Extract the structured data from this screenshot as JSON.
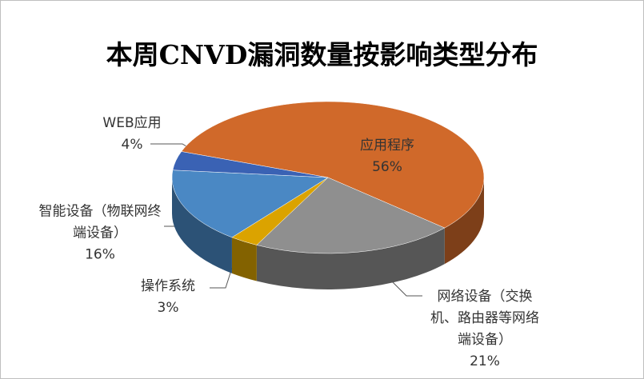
{
  "chart_data": {
    "type": "pie",
    "title": "本周CNVD漏洞数量按影响类型分布",
    "categories": [
      "应用程序",
      "网络设备（交换机、路由器等网络端设备）",
      "操作系统",
      "智能设备（物联网终端设备）",
      "WEB应用"
    ],
    "values": [
      56,
      21,
      3,
      16,
      4
    ],
    "value_labels": [
      "56%",
      "21%",
      "3%",
      "16%",
      "4%"
    ],
    "colors": [
      "#d0692a",
      "#8f8f8f",
      "#dba300",
      "#4a88c4",
      "#3a62b4"
    ]
  }
}
